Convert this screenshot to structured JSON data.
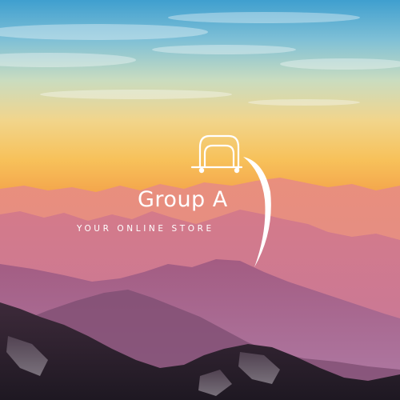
{
  "logo": {
    "brand_name": "Group A",
    "tagline": "YOUR ONLINE STORE",
    "mark_icon": "shopping-bag-icon",
    "accent_color": "#ffffff"
  },
  "background": {
    "subject": "mountain-sunset-photo",
    "colors": {
      "sky_top": "#3f9fcf",
      "sky_mid": "#f1d58c",
      "sky_low": "#f4a64c",
      "haze": "#d98873",
      "foreground": "#2e2230"
    }
  }
}
